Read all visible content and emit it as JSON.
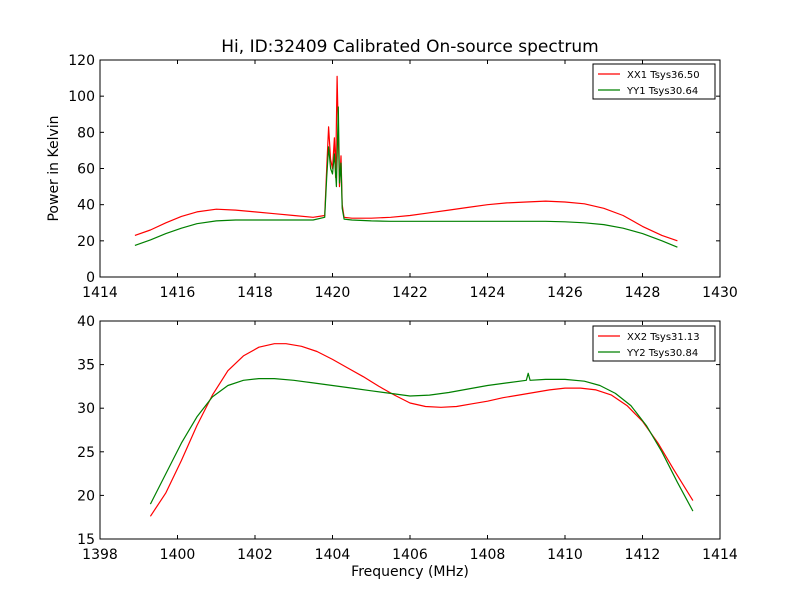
{
  "chart_data": [
    {
      "type": "line",
      "title": "Hi, ID:32409 Calibrated On-source spectrum",
      "xlabel": "",
      "ylabel": "Power in Kelvin",
      "xlim": [
        1414,
        1430
      ],
      "ylim": [
        0,
        120
      ],
      "xticks": [
        "1414",
        "1416",
        "1418",
        "1420",
        "1422",
        "1424",
        "1426",
        "1428",
        "1430"
      ],
      "yticks": [
        "0",
        "20",
        "40",
        "60",
        "80",
        "100",
        "120"
      ],
      "grid": false,
      "legend_position": "top-right",
      "series": [
        {
          "name": "XX1 Tsys36.50",
          "color": "#ff0000",
          "x": [
            1414.9,
            1415.3,
            1415.7,
            1416.1,
            1416.5,
            1417.0,
            1417.5,
            1418.0,
            1418.5,
            1419.0,
            1419.5,
            1419.8,
            1419.85,
            1419.9,
            1419.95,
            1420.0,
            1420.05,
            1420.08,
            1420.12,
            1420.15,
            1420.18,
            1420.22,
            1420.25,
            1420.3,
            1420.5,
            1421.0,
            1421.5,
            1422.0,
            1422.5,
            1423.0,
            1423.5,
            1424.0,
            1424.5,
            1425.0,
            1425.5,
            1426.0,
            1426.5,
            1427.0,
            1427.5,
            1428.0,
            1428.5,
            1428.9
          ],
          "y": [
            23,
            26,
            30,
            33.5,
            36,
            37.5,
            37,
            36,
            35,
            34,
            33,
            34,
            60,
            83,
            65,
            60,
            77,
            55,
            111,
            80,
            50,
            67,
            40,
            33,
            32.5,
            32.5,
            33,
            34,
            35.5,
            37,
            38.5,
            40,
            41,
            41.5,
            42,
            41.5,
            40.5,
            38,
            34,
            28,
            23,
            20
          ]
        },
        {
          "name": "YY1 Tsys30.64",
          "color": "#008000",
          "x": [
            1414.9,
            1415.3,
            1415.7,
            1416.1,
            1416.5,
            1417.0,
            1417.5,
            1418.0,
            1418.5,
            1419.0,
            1419.5,
            1419.8,
            1419.85,
            1419.9,
            1419.95,
            1420.0,
            1420.05,
            1420.1,
            1420.15,
            1420.18,
            1420.22,
            1420.25,
            1420.3,
            1420.5,
            1421.0,
            1421.5,
            1422.0,
            1422.5,
            1423.0,
            1423.5,
            1424.0,
            1424.5,
            1425.0,
            1425.5,
            1426.0,
            1426.5,
            1427.0,
            1427.5,
            1428.0,
            1428.5,
            1428.9
          ],
          "y": [
            17.5,
            20.5,
            24,
            27,
            29.5,
            31,
            31.5,
            31.5,
            31.5,
            31.5,
            31.5,
            33,
            55,
            72,
            60,
            57,
            68,
            50,
            94,
            52,
            63,
            38,
            32,
            31.5,
            31,
            30.8,
            30.8,
            30.8,
            30.8,
            30.8,
            30.8,
            30.8,
            30.8,
            30.8,
            30.5,
            30,
            29,
            27,
            24,
            20,
            16.5
          ]
        }
      ]
    },
    {
      "type": "line",
      "title": "",
      "xlabel": "Frequency (MHz)",
      "ylabel": "",
      "xlim": [
        1398,
        1414
      ],
      "ylim": [
        15,
        40
      ],
      "xticks": [
        "1398",
        "1400",
        "1402",
        "1404",
        "1406",
        "1408",
        "1410",
        "1412",
        "1414"
      ],
      "yticks": [
        "15",
        "20",
        "25",
        "30",
        "35",
        "40"
      ],
      "grid": false,
      "legend_position": "top-right",
      "series": [
        {
          "name": "XX2 Tsys31.13",
          "color": "#ff0000",
          "x": [
            1399.3,
            1399.7,
            1400.1,
            1400.5,
            1400.9,
            1401.3,
            1401.7,
            1402.1,
            1402.5,
            1402.8,
            1403.2,
            1403.6,
            1404.0,
            1404.4,
            1404.8,
            1405.2,
            1405.6,
            1406.0,
            1406.4,
            1406.8,
            1407.2,
            1407.6,
            1408.0,
            1408.4,
            1408.8,
            1409.2,
            1409.6,
            1410.0,
            1410.4,
            1410.8,
            1411.2,
            1411.6,
            1412.0,
            1412.4,
            1412.8,
            1413.3
          ],
          "y": [
            17.6,
            20.3,
            24,
            28,
            31.5,
            34.3,
            36,
            37,
            37.4,
            37.4,
            37.1,
            36.5,
            35.6,
            34.6,
            33.6,
            32.5,
            31.5,
            30.6,
            30.2,
            30.1,
            30.2,
            30.5,
            30.8,
            31.2,
            31.5,
            31.8,
            32.1,
            32.3,
            32.3,
            32.1,
            31.5,
            30.3,
            28.5,
            26,
            23,
            19.4
          ]
        },
        {
          "name": "YY2 Tsys30.84",
          "color": "#008000",
          "x": [
            1399.3,
            1399.7,
            1400.1,
            1400.5,
            1400.9,
            1401.3,
            1401.7,
            1402.1,
            1402.5,
            1403.0,
            1403.5,
            1404.0,
            1404.5,
            1405.0,
            1405.5,
            1406.0,
            1406.5,
            1407.0,
            1407.5,
            1408.0,
            1408.5,
            1409.0,
            1409.05,
            1409.1,
            1409.5,
            1410.0,
            1410.5,
            1410.9,
            1411.3,
            1411.7,
            1412.1,
            1412.5,
            1412.9,
            1413.3
          ],
          "y": [
            19,
            22.5,
            26,
            29,
            31.3,
            32.6,
            33.2,
            33.4,
            33.4,
            33.2,
            32.9,
            32.6,
            32.3,
            32,
            31.7,
            31.4,
            31.5,
            31.8,
            32.2,
            32.6,
            32.9,
            33.2,
            34,
            33.2,
            33.3,
            33.3,
            33.1,
            32.6,
            31.7,
            30.3,
            28,
            25,
            21.5,
            18.2
          ]
        }
      ]
    }
  ]
}
